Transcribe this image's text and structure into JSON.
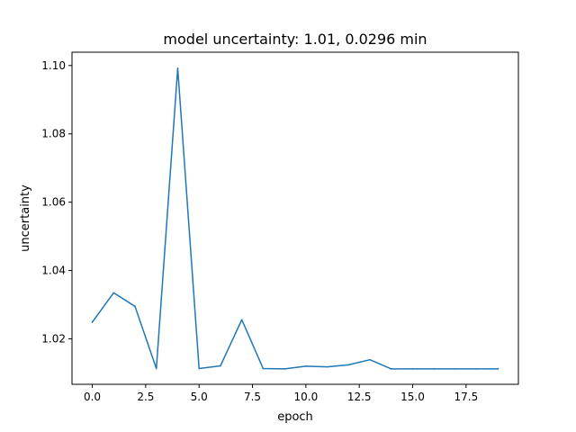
{
  "chart_data": {
    "type": "line",
    "title": "model uncertainty: 1.01, 0.0296 min",
    "xlabel": "epoch",
    "ylabel": "uncertainty",
    "xlim": [
      -0.95,
      19.95
    ],
    "ylim": [
      1.0067,
      1.1039
    ],
    "xticks": [
      0,
      2.5,
      5,
      7.5,
      10,
      12.5,
      15,
      17.5
    ],
    "xtick_labels": [
      "0.0",
      "2.5",
      "5.0",
      "7.5",
      "10.0",
      "12.5",
      "15.0",
      "17.5"
    ],
    "yticks": [
      1.02,
      1.04,
      1.06,
      1.08,
      1.1
    ],
    "ytick_labels": [
      "1.02",
      "1.04",
      "1.06",
      "1.08",
      "1.10"
    ],
    "grid": false,
    "series": [
      {
        "color": "#1f77b4",
        "x": [
          0,
          1,
          2,
          3,
          4,
          5,
          6,
          7,
          8,
          9,
          10,
          11,
          12,
          13,
          14,
          15,
          16,
          17,
          18,
          19
        ],
        "values": [
          1.0249,
          1.0335,
          1.0295,
          1.0113,
          1.0992,
          1.0113,
          1.0121,
          1.0256,
          1.0113,
          1.0112,
          1.012,
          1.0118,
          1.0124,
          1.0139,
          1.0112,
          1.0112,
          1.0112,
          1.0112,
          1.0112,
          1.0112
        ]
      }
    ]
  }
}
